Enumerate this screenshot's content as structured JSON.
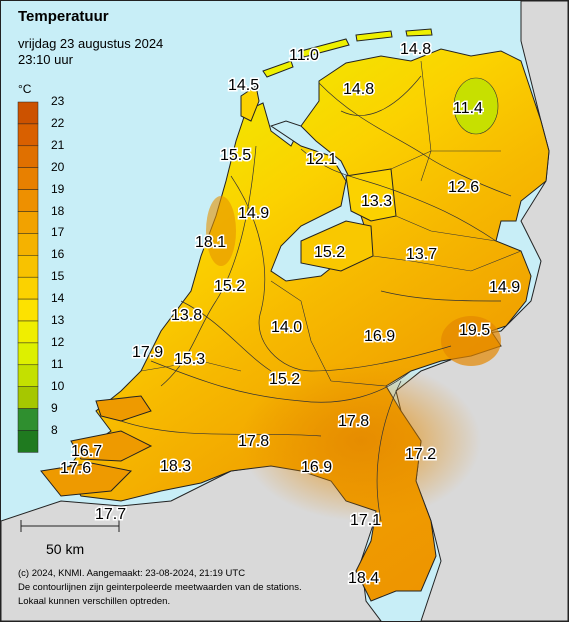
{
  "title": "Temperatuur",
  "date": "vrijdag 23 augustus 2024",
  "time": "23:10 uur",
  "unit": "°C",
  "legend": {
    "min": 8,
    "max": 23,
    "ticks": [
      "23",
      "22",
      "21",
      "20",
      "19",
      "18",
      "17",
      "16",
      "15",
      "14",
      "13",
      "12",
      "11",
      "10",
      "9",
      "8"
    ],
    "colors": [
      "#cc5200",
      "#d96000",
      "#e07000",
      "#e88000",
      "#ee9000",
      "#f2a200",
      "#f5b200",
      "#f8c200",
      "#fbd200",
      "#fde200",
      "#f0ee00",
      "#ddf000",
      "#c4e000",
      "#a6c700",
      "#2f8f2f",
      "#1f7a1f"
    ]
  },
  "colors": {
    "sea": "#c8eef7",
    "neighbor_land": "#d9d9d9",
    "border": "#222222",
    "contour": "#333333"
  },
  "scale_bar": {
    "label": "50 km"
  },
  "footer": [
    "(c) 2024, KNMI. Aangemaakt: 23-08-2024, 21:19 UTC",
    "De contourlijnen zijn geinterpoleerde meetwaarden van de stations.",
    "Lokaal kunnen verschillen optreden."
  ],
  "stations": [
    "11.0",
    "14.8",
    "14.5",
    "14.8",
    "11.4",
    "15.5",
    "12.1",
    "13.3",
    "12.6",
    "14.9",
    "18.1",
    "15.2",
    "13.7",
    "15.2",
    "14.9",
    "13.8",
    "14.0",
    "16.9",
    "19.5",
    "17.9",
    "15.3",
    "15.2",
    "17.8",
    "16.7",
    "17.8",
    "16.9",
    "17.2",
    "17.6",
    "18.3",
    "17.7",
    "17.1",
    "18.4"
  ]
}
